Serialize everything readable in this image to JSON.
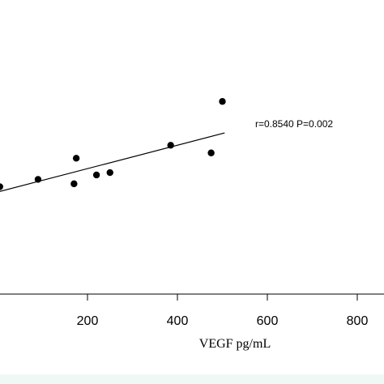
{
  "chart_data": {
    "type": "scatter",
    "title": "",
    "xlabel": "VEGF pg/mL",
    "ylabel": "",
    "x_ticks": [
      200,
      400,
      600,
      800
    ],
    "xlim": [
      0,
      840
    ],
    "ylim": [
      0,
      1
    ],
    "grid": false,
    "points": [
      {
        "x": -5,
        "y": 0.365
      },
      {
        "x": 5,
        "y": 0.365
      },
      {
        "x": 90,
        "y": 0.39
      },
      {
        "x": 170,
        "y": 0.375
      },
      {
        "x": 175,
        "y": 0.462
      },
      {
        "x": 220,
        "y": 0.405
      },
      {
        "x": 250,
        "y": 0.413
      },
      {
        "x": 385,
        "y": 0.506
      },
      {
        "x": 475,
        "y": 0.48
      },
      {
        "x": 500,
        "y": 0.655
      }
    ],
    "fit_line": {
      "x": [
        -10,
        505
      ],
      "y": [
        0.343,
        0.548
      ]
    },
    "annotation": "r=0.8540  P=0.002",
    "colors": {
      "points": "#000000",
      "line": "#000000",
      "footer": "#f0f8f6"
    }
  }
}
